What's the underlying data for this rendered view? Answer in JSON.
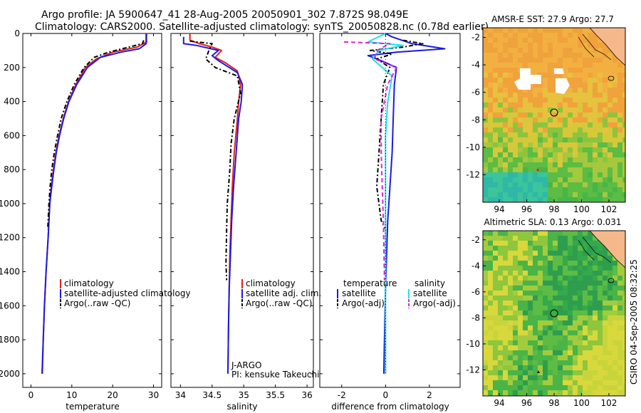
{
  "header": {
    "line1": "Argo profile: JA 5900647_41 28-Aug-2005 20050901_302 7.872S 98.049E",
    "line2": "Climatology: CARS2000. Satellite-adjusted climatology: synTS_20050828.nc (0.78d earlier)"
  },
  "side_stamp": "CSIRO 04-Sep-2005 08:32:25",
  "colors": {
    "climatology": "#e0201c",
    "satellite": "#1a1ae6",
    "argo": "#000000",
    "argo_sal_adj": "#e020e0",
    "sat_sal": "#20e0e8",
    "land": "#f5b88a"
  },
  "chart_data": [
    {
      "type": "line",
      "id": "temperature",
      "xlabel": "temperature",
      "ylabel": "",
      "xlim": [
        -2,
        32
      ],
      "ylim": [
        2080,
        0
      ],
      "xticks": [
        0,
        10,
        20,
        30
      ],
      "yticks": [
        0,
        200,
        400,
        600,
        800,
        1000,
        1200,
        1400,
        1600,
        1800,
        2000
      ],
      "legend": {
        "placement": "lower-right",
        "entries": [
          "climatology",
          "satellite-adjusted climatology",
          "Argo(..raw -QC)"
        ]
      },
      "series": [
        {
          "name": "climatology",
          "color": "climatology",
          "style": "solid",
          "points": [
            [
              28.3,
              0
            ],
            [
              28.3,
              50
            ],
            [
              26,
              80
            ],
            [
              20,
              110
            ],
            [
              16,
              150
            ],
            [
              13.3,
              200
            ],
            [
              11,
              300
            ],
            [
              9.2,
              400
            ],
            [
              7.9,
              500
            ],
            [
              6.9,
              600
            ],
            [
              6.1,
              700
            ],
            [
              5.5,
              800
            ],
            [
              5,
              900
            ],
            [
              4.6,
              1000
            ],
            [
              4.2,
              1200
            ],
            [
              3.7,
              1400
            ],
            [
              3.3,
              1600
            ],
            [
              3,
              1800
            ],
            [
              2.8,
              2000
            ]
          ]
        },
        {
          "name": "satellite-adjusted climatology",
          "color": "satellite",
          "style": "solid",
          "points": [
            [
              28.2,
              0
            ],
            [
              28.2,
              60
            ],
            [
              26.5,
              90
            ],
            [
              22,
              110
            ],
            [
              17,
              140
            ],
            [
              13.8,
              200
            ],
            [
              11.2,
              300
            ],
            [
              9.3,
              400
            ],
            [
              8,
              500
            ],
            [
              7,
              600
            ],
            [
              6.2,
              700
            ],
            [
              5.6,
              800
            ],
            [
              5.1,
              900
            ],
            [
              4.6,
              1000
            ],
            [
              4.2,
              1200
            ],
            [
              3.7,
              1400
            ],
            [
              3.3,
              1600
            ],
            [
              3,
              1800
            ],
            [
              2.7,
              2000
            ]
          ]
        },
        {
          "name": "Argo(..raw -QC)",
          "color": "argo",
          "style": "dashdot",
          "points": [
            [
              27.6,
              40
            ],
            [
              27.3,
              60
            ],
            [
              24,
              80
            ],
            [
              19,
              110
            ],
            [
              15.5,
              140
            ],
            [
              13,
              200
            ],
            [
              10.6,
              300
            ],
            [
              8.8,
              400
            ],
            [
              7.4,
              500
            ],
            [
              6.5,
              600
            ],
            [
              5.7,
              700
            ],
            [
              5.1,
              800
            ],
            [
              4.7,
              900
            ],
            [
              4.4,
              1000
            ],
            [
              4.1,
              1150
            ]
          ]
        }
      ]
    },
    {
      "type": "line",
      "id": "salinity",
      "xlabel": "salinity",
      "ylabel": "",
      "xlim": [
        33.85,
        36.1
      ],
      "ylim": [
        2080,
        0
      ],
      "xticks": [
        34,
        34.5,
        35,
        35.5,
        36
      ],
      "legend": {
        "placement": "lower-right",
        "entries": [
          "climatology",
          "satellite adj. clim.",
          "Argo(..raw -QC)"
        ]
      },
      "annotations": [
        "J-ARGO",
        "PI: kensuke Takeuchi"
      ],
      "series": [
        {
          "name": "climatology",
          "color": "climatology",
          "style": "solid",
          "points": [
            [
              34.15,
              0
            ],
            [
              34.15,
              40
            ],
            [
              34.3,
              60
            ],
            [
              34.5,
              80
            ],
            [
              34.65,
              100
            ],
            [
              34.55,
              140
            ],
            [
              34.7,
              170
            ],
            [
              34.9,
              220
            ],
            [
              34.95,
              300
            ],
            [
              34.92,
              400
            ],
            [
              34.9,
              500
            ],
            [
              34.85,
              700
            ],
            [
              34.82,
              900
            ],
            [
              34.8,
              1100
            ],
            [
              34.78,
              1300
            ],
            [
              34.77,
              1500
            ],
            [
              34.76,
              1700
            ],
            [
              34.75,
              2000
            ]
          ]
        },
        {
          "name": "satellite adj. clim.",
          "color": "satellite",
          "style": "solid",
          "points": [
            [
              34.05,
              20
            ],
            [
              34.05,
              60
            ],
            [
              34.25,
              70
            ],
            [
              34.6,
              100
            ],
            [
              34.5,
              130
            ],
            [
              34.6,
              160
            ],
            [
              34.9,
              230
            ],
            [
              34.98,
              300
            ],
            [
              34.96,
              400
            ],
            [
              34.92,
              500
            ],
            [
              34.88,
              700
            ],
            [
              34.84,
              900
            ],
            [
              34.81,
              1100
            ],
            [
              34.79,
              1300
            ],
            [
              34.77,
              1500
            ],
            [
              34.76,
              1700
            ],
            [
              34.75,
              2000
            ]
          ]
        },
        {
          "name": "Argo(..raw -QC)",
          "color": "argo",
          "style": "dashdot",
          "points": [
            [
              34.15,
              45
            ],
            [
              34.5,
              60
            ],
            [
              34.45,
              100
            ],
            [
              34.4,
              150
            ],
            [
              34.55,
              200
            ],
            [
              34.9,
              250
            ],
            [
              34.95,
              350
            ],
            [
              34.85,
              500
            ],
            [
              34.8,
              650
            ],
            [
              34.78,
              800
            ],
            [
              34.74,
              1000
            ],
            [
              34.73,
              1150
            ],
            [
              34.72,
              1350
            ],
            [
              34.73,
              1450
            ]
          ]
        }
      ]
    },
    {
      "type": "line",
      "id": "difference",
      "xlabel": "difference from climatology",
      "ylabel": "",
      "xlim": [
        -3,
        3.4
      ],
      "ylim": [
        2080,
        0
      ],
      "xticks": [
        -2,
        0,
        2
      ],
      "legend": {
        "placement": "lower-center",
        "entries": [
          "temperature",
          "satellite",
          "Argo(-adj)",
          "salinity",
          "satellite",
          "Argo(-adj)"
        ]
      },
      "series": [
        {
          "name": "satellite",
          "group": "temperature",
          "color": "satellite",
          "style": "solid",
          "points": [
            [
              0,
              0
            ],
            [
              0.3,
              20
            ],
            [
              1.2,
              60
            ],
            [
              2.7,
              90
            ],
            [
              0.5,
              110
            ],
            [
              -0.8,
              130
            ],
            [
              -0.2,
              160
            ],
            [
              0.5,
              200
            ],
            [
              0.4,
              300
            ],
            [
              0.35,
              500
            ],
            [
              0.3,
              700
            ],
            [
              0.2,
              900
            ],
            [
              0.1,
              1100
            ],
            [
              0,
              1500
            ],
            [
              -0.05,
              1800
            ],
            [
              -0.08,
              2000
            ]
          ]
        },
        {
          "name": "Argo(-adj)",
          "group": "temperature",
          "color": "argo",
          "style": "dashdot",
          "points": [
            [
              0.8,
              40
            ],
            [
              1.7,
              60
            ],
            [
              0.8,
              80
            ],
            [
              -0.7,
              100
            ],
            [
              0.3,
              120
            ],
            [
              -0.4,
              150
            ],
            [
              0.2,
              200
            ],
            [
              -0.1,
              300
            ],
            [
              -0.2,
              500
            ],
            [
              -0.3,
              700
            ],
            [
              -0.4,
              900
            ],
            [
              -0.2,
              1100
            ],
            [
              0,
              1150
            ]
          ]
        },
        {
          "name": "satellite",
          "group": "salinity",
          "color": "sat_sal",
          "style": "solid",
          "points": [
            [
              0,
              0
            ],
            [
              -0.8,
              50
            ],
            [
              0.8,
              70
            ],
            [
              -0.3,
              100
            ],
            [
              -0.6,
              150
            ],
            [
              0.3,
              250
            ],
            [
              0.1,
              400
            ],
            [
              0,
              600
            ],
            [
              0,
              1000
            ],
            [
              0,
              1500
            ],
            [
              0,
              2000
            ]
          ]
        },
        {
          "name": "Argo(-adj)",
          "group": "salinity",
          "color": "argo_sal_adj",
          "style": "dashed",
          "points": [
            [
              -1.9,
              50
            ],
            [
              0.2,
              60
            ],
            [
              -0.4,
              100
            ],
            [
              -0.5,
              150
            ],
            [
              0.5,
              200
            ],
            [
              0.1,
              300
            ],
            [
              -0.2,
              500
            ],
            [
              -0.2,
              700
            ],
            [
              -0.15,
              900
            ],
            [
              -0.1,
              1100
            ],
            [
              -0.05,
              1450
            ]
          ]
        },
        {
          "name": "zero",
          "group": "reference",
          "color": "argo",
          "style": "dotted",
          "points": [
            [
              0,
              0
            ],
            [
              0,
              2000
            ]
          ]
        }
      ]
    },
    {
      "type": "heatmap",
      "id": "sst-map",
      "title": "AMSR-E SST: 27.9 Argo: 27.7",
      "xlim": [
        92.8,
        103.2
      ],
      "ylim": [
        -14,
        -1.3
      ],
      "xticks": [
        94,
        96,
        98,
        100,
        102
      ],
      "yticks": [
        -2,
        -4,
        -6,
        -8,
        -10,
        -12
      ],
      "float_position": [
        98.05,
        -7.87
      ],
      "float_marker": "open",
      "gaps": true
    },
    {
      "type": "heatmap",
      "id": "sla-map",
      "title": "Altimetric SLA: 0.13 Argo: 0.031",
      "xlim": [
        92.8,
        103.2
      ],
      "ylim": [
        -14,
        -1.3
      ],
      "xticks": [
        94,
        96,
        98,
        100,
        102
      ],
      "yticks": [
        -2,
        -4,
        -6,
        -8,
        -10,
        -12
      ],
      "float_position": [
        98.05,
        -7.87
      ],
      "float_marker": "filled-green",
      "gaps": false
    }
  ]
}
